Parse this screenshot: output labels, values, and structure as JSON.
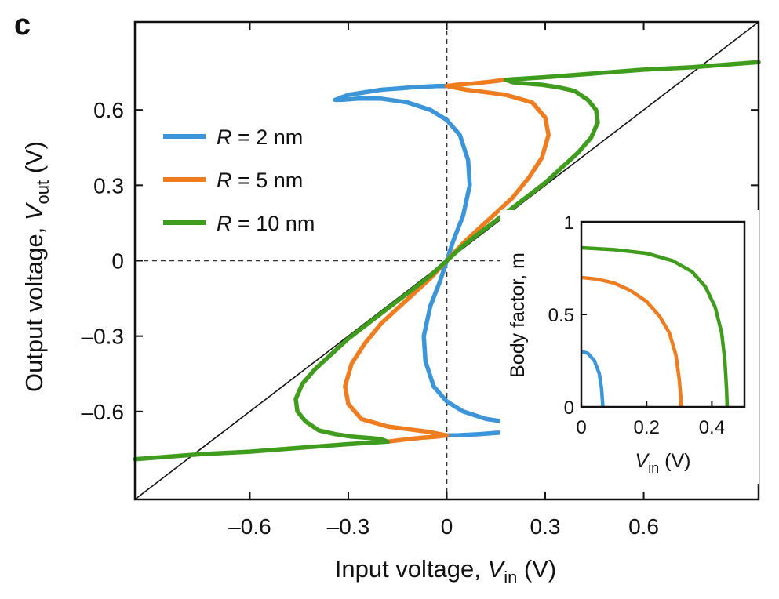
{
  "panel_label": "c",
  "colors": {
    "R2": "#3b95d8",
    "R5": "#ee7d21",
    "R10": "#3f9c1d",
    "identity": "#111111"
  },
  "chart_data": [
    {
      "type": "line",
      "xlabel": {
        "prefix": "Input voltage, ",
        "var": "V",
        "sub": "in",
        "unit": " (V)"
      },
      "ylabel": {
        "prefix": "Output voltage, ",
        "var": "V",
        "sub": "out",
        "unit": " (V)"
      },
      "xlim": [
        -0.95,
        0.95
      ],
      "ylim": [
        -0.95,
        0.95
      ],
      "xticks": [
        -0.6,
        -0.3,
        0,
        0.3,
        0.6
      ],
      "xtick_labels": [
        "–0.6",
        "–0.3",
        "0",
        "0.3",
        "0.6"
      ],
      "yticks": [
        -0.6,
        -0.3,
        0,
        0.3,
        0.6
      ],
      "ytick_labels": [
        "–0.6",
        "–0.3",
        "0",
        "0.3",
        "0.6"
      ],
      "reference_lines": [
        "x = 0 (dashed)",
        "y = 0 (dashed)",
        "y = x (solid)"
      ],
      "legend_position": "upper-left",
      "series": [
        {
          "name_var": "R",
          "name_rest": " = 2 nm",
          "color": "R2",
          "x": [
            0.0,
            0.02,
            0.05,
            0.07,
            0.065,
            0.04,
            0.0,
            -0.05,
            -0.12,
            -0.2,
            -0.27,
            -0.32,
            -0.34,
            -0.3,
            -0.2,
            -0.1,
            -0.03,
            0.0
          ],
          "y": [
            0.0,
            0.08,
            0.18,
            0.3,
            0.4,
            0.5,
            0.56,
            0.6,
            0.63,
            0.645,
            0.645,
            0.64,
            0.64,
            0.66,
            0.68,
            0.69,
            0.695,
            0.695
          ]
        },
        {
          "name_var": "R",
          "name_rest": " = 5 nm",
          "color": "R5",
          "x": [
            0.0,
            0.05,
            0.1,
            0.15,
            0.2,
            0.25,
            0.29,
            0.31,
            0.3,
            0.26,
            0.18,
            0.12,
            0.06,
            0.0,
            0.03,
            0.08,
            0.13,
            0.18
          ],
          "y": [
            0.0,
            0.07,
            0.13,
            0.19,
            0.25,
            0.33,
            0.41,
            0.5,
            0.57,
            0.63,
            0.66,
            0.67,
            0.68,
            0.695,
            0.7,
            0.705,
            0.712,
            0.72
          ]
        },
        {
          "name_var": "R",
          "name_rest": " = 10 nm",
          "color": "R10",
          "x": [
            0.0,
            0.05,
            0.1,
            0.15,
            0.2,
            0.25,
            0.3,
            0.35,
            0.4,
            0.44,
            0.46,
            0.455,
            0.43,
            0.39,
            0.34,
            0.29,
            0.24,
            0.2,
            0.18,
            0.3,
            0.45,
            0.6,
            0.75,
            0.9,
            0.95
          ],
          "y": [
            0.0,
            0.06,
            0.11,
            0.16,
            0.21,
            0.26,
            0.31,
            0.37,
            0.43,
            0.49,
            0.55,
            0.6,
            0.64,
            0.675,
            0.69,
            0.7,
            0.705,
            0.71,
            0.72,
            0.73,
            0.745,
            0.76,
            0.77,
            0.785,
            0.79
          ]
        }
      ],
      "symmetry": "odd (curves are point-symmetric through the origin)"
    },
    {
      "type": "line",
      "inset": true,
      "xlabel": {
        "var": "V",
        "sub": "in",
        "unit": " (V)"
      },
      "ylabel": "Body factor, m",
      "xlim": [
        0,
        0.5
      ],
      "ylim": [
        0,
        1
      ],
      "xticks": [
        0,
        0.2,
        0.4
      ],
      "xtick_labels": [
        "0",
        "0.2",
        "0.4"
      ],
      "yticks": [
        0,
        0.5,
        1
      ],
      "ytick_labels": [
        "0",
        "0.5",
        "1"
      ],
      "series": [
        {
          "color": "R2",
          "x": [
            0.0,
            0.02,
            0.04,
            0.055,
            0.062,
            0.065,
            0.066
          ],
          "y": [
            0.3,
            0.29,
            0.25,
            0.18,
            0.1,
            0.03,
            0.0
          ]
        },
        {
          "color": "R5",
          "x": [
            0.0,
            0.05,
            0.1,
            0.15,
            0.2,
            0.24,
            0.27,
            0.29,
            0.3,
            0.305,
            0.305
          ],
          "y": [
            0.7,
            0.69,
            0.67,
            0.63,
            0.57,
            0.49,
            0.4,
            0.28,
            0.15,
            0.05,
            0.0
          ]
        },
        {
          "color": "R10",
          "x": [
            0.0,
            0.1,
            0.2,
            0.28,
            0.34,
            0.38,
            0.41,
            0.43,
            0.44,
            0.445,
            0.447
          ],
          "y": [
            0.86,
            0.85,
            0.83,
            0.79,
            0.73,
            0.65,
            0.54,
            0.4,
            0.25,
            0.1,
            0.0
          ]
        }
      ]
    }
  ]
}
